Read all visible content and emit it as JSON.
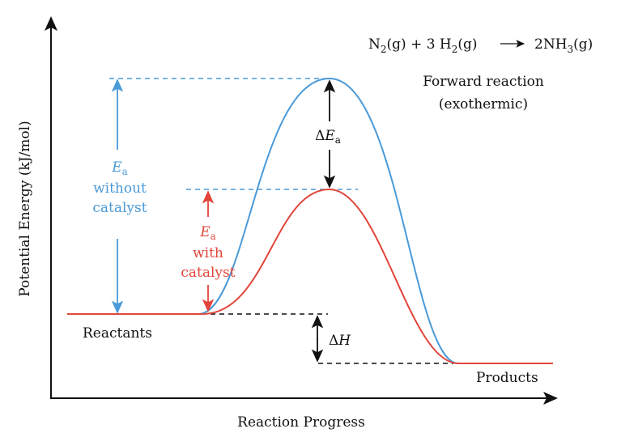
{
  "equation": {
    "p1": "N",
    "s1": "2",
    "p2": "(g) + 3 H",
    "s2": "2",
    "p3": "(g)",
    "p4": "2NH",
    "s3": "3",
    "p5": "(g)"
  },
  "forward_label": [
    "Forward reaction",
    "(exothermic)"
  ],
  "axes": {
    "y_label": "Potential Energy (kJ/mol)",
    "x_label": "Reaction Progress"
  },
  "labels": {
    "reactants": "Reactants",
    "products": "Products",
    "ea_symbol": "E",
    "ea_sub": "a",
    "without": [
      "without",
      "catalyst"
    ],
    "with": [
      "with",
      "catalyst"
    ],
    "delta_ea_delta": "Δ",
    "delta_ea_e": "E",
    "delta_ea_sub": "a",
    "delta_h_delta": "Δ",
    "delta_h_h": "H"
  },
  "colors": {
    "uncatalyzed": "#4a9ad8",
    "catalyzed": "#e2453a",
    "axis": "#111111"
  }
}
